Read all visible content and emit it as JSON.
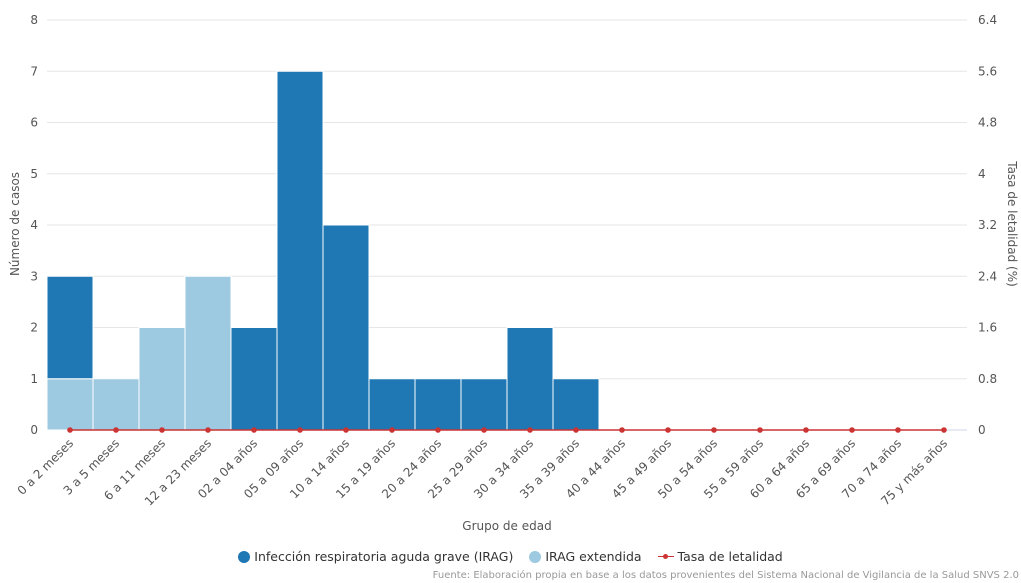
{
  "chart_data": {
    "type": "bar",
    "stacked": true,
    "categories": [
      "0 a 2 meses",
      "3 a 5 meses",
      "6 a 11 meses",
      "12 a 23 meses",
      "02 a 04 años",
      "05 a 09 años",
      "10 a 14 años",
      "15 a 19 años",
      "20 a 24 años",
      "25 a 29 años",
      "30 a 34 años",
      "35 a 39 años",
      "40 a 44 años",
      "45 a 49 años",
      "50 a 54 años",
      "55 a 59 años",
      "60 a 64 años",
      "65 a 69 años",
      "70 a 74 años",
      "75 y más años"
    ],
    "series": [
      {
        "name": "Infección respiratoria aguda grave (IRAG)",
        "type": "bar",
        "axis": "left",
        "color": "#1f77b4",
        "values": [
          2,
          0,
          0,
          0,
          2,
          7,
          4,
          1,
          1,
          1,
          2,
          1,
          0,
          0,
          0,
          0,
          0,
          0,
          0,
          0
        ]
      },
      {
        "name": "IRAG extendida",
        "type": "bar",
        "axis": "left",
        "color": "#9ecae1",
        "values": [
          1,
          1,
          2,
          3,
          0,
          0,
          0,
          0,
          0,
          0,
          0,
          0,
          0,
          0,
          0,
          0,
          0,
          0,
          0,
          0
        ]
      },
      {
        "name": "Tasa de letalidad",
        "type": "line",
        "axis": "right",
        "color": "#cc3333",
        "values": [
          0,
          0,
          0,
          0,
          0,
          0,
          0,
          0,
          0,
          0,
          0,
          0,
          0,
          0,
          0,
          0,
          0,
          0,
          0,
          0
        ]
      }
    ],
    "xlabel": "Grupo de edad",
    "ylabel": "Número de casos",
    "y2label": "Tasa de letalidad (%)",
    "ylim": [
      0,
      8
    ],
    "y2lim": [
      0,
      6.4
    ],
    "yticks": [
      "0",
      "1",
      "2",
      "3",
      "4",
      "5",
      "6",
      "7",
      "8"
    ],
    "y2ticks": [
      "0",
      "0.8",
      "1.6",
      "2.4",
      "3.2",
      "4",
      "4.8",
      "5.6",
      "6.4"
    ],
    "grid": true,
    "legend_position": "bottom"
  },
  "source": "Fuente: Elaboración propia en base a los datos provenientes del Sistema Nacional de Vigilancia de la Salud SNVS 2.0"
}
